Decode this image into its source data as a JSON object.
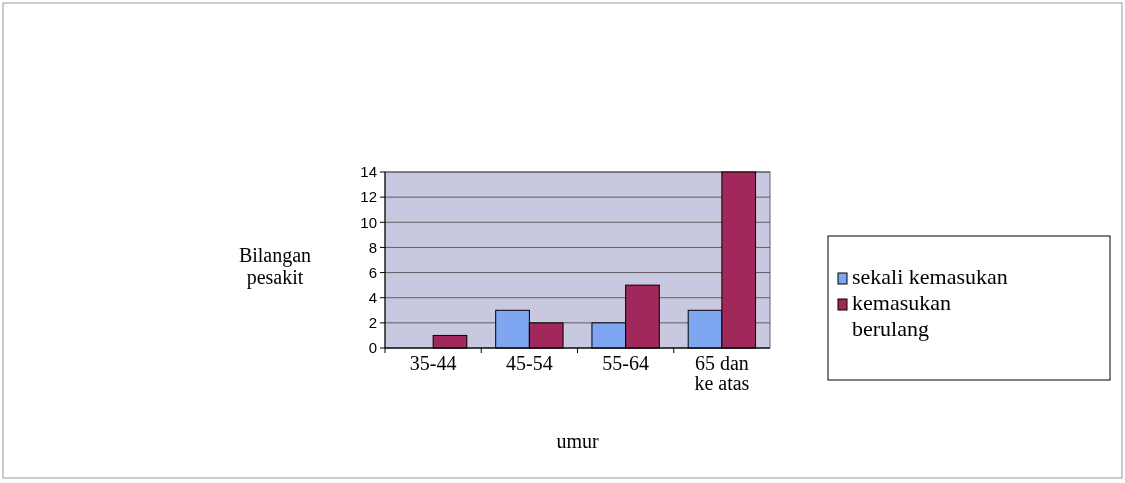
{
  "chart_data": {
    "type": "bar",
    "xlabel": "umur",
    "ylabel": "Bilangan pesakit",
    "categories": [
      "35-44",
      "45-54",
      "55-64",
      "65 dan ke atas"
    ],
    "series": [
      {
        "name": "sekali kemasukan",
        "color": "#7fa6f0",
        "values": [
          0,
          3,
          2,
          3
        ]
      },
      {
        "name": "kemasukan berulang",
        "color": "#a0285a",
        "values": [
          1,
          2,
          5,
          14
        ]
      }
    ],
    "ylim": [
      0,
      14
    ],
    "yticks": [
      0,
      2,
      4,
      6,
      8,
      10,
      12,
      14
    ],
    "grid": "y",
    "legend": "right"
  }
}
